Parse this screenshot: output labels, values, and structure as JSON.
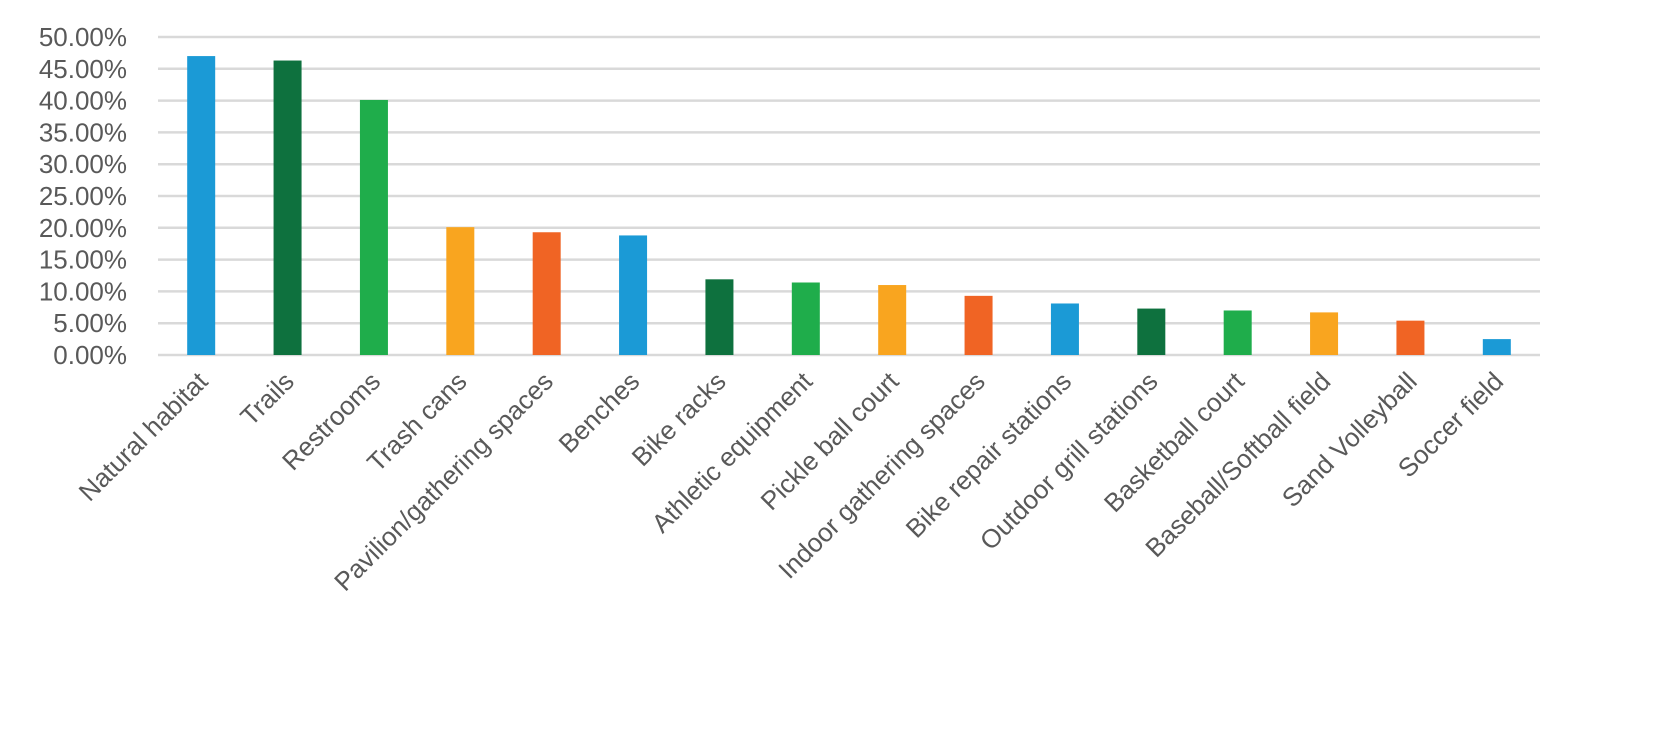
{
  "chart_data": {
    "type": "bar",
    "title": "",
    "xlabel": "",
    "ylabel": "",
    "ylim": [
      0,
      50
    ],
    "y_tick_step": 5,
    "y_tick_format": "percent_2dp",
    "grid": true,
    "legend": "none",
    "categories": [
      "Natural habitat",
      "Trails",
      "Restrooms",
      "Trash cans",
      "Pavilion/gathering spaces",
      "Benches",
      "Bike racks",
      "Athletic equipment",
      "Pickle ball court",
      "Indoor gathering spaces",
      "Bike repair stations",
      "Outdoor grill stations",
      "Basketball court",
      "Baseball/Softball field",
      "Sand Volleyball",
      "Soccer field"
    ],
    "values": [
      47.0,
      46.3,
      40.1,
      20.1,
      19.3,
      18.8,
      11.9,
      11.4,
      11.0,
      9.3,
      8.1,
      7.3,
      7.0,
      6.7,
      5.4,
      2.5
    ],
    "colors": [
      "#1b9ad6",
      "#0e713e",
      "#1fad4b",
      "#f9a51f",
      "#f06424",
      "#1b9ad6",
      "#0e713e",
      "#1fad4b",
      "#f9a51f",
      "#f06424",
      "#1b9ad6",
      "#0e713e",
      "#1fad4b",
      "#f9a51f",
      "#f06424",
      "#1b9ad6"
    ]
  }
}
